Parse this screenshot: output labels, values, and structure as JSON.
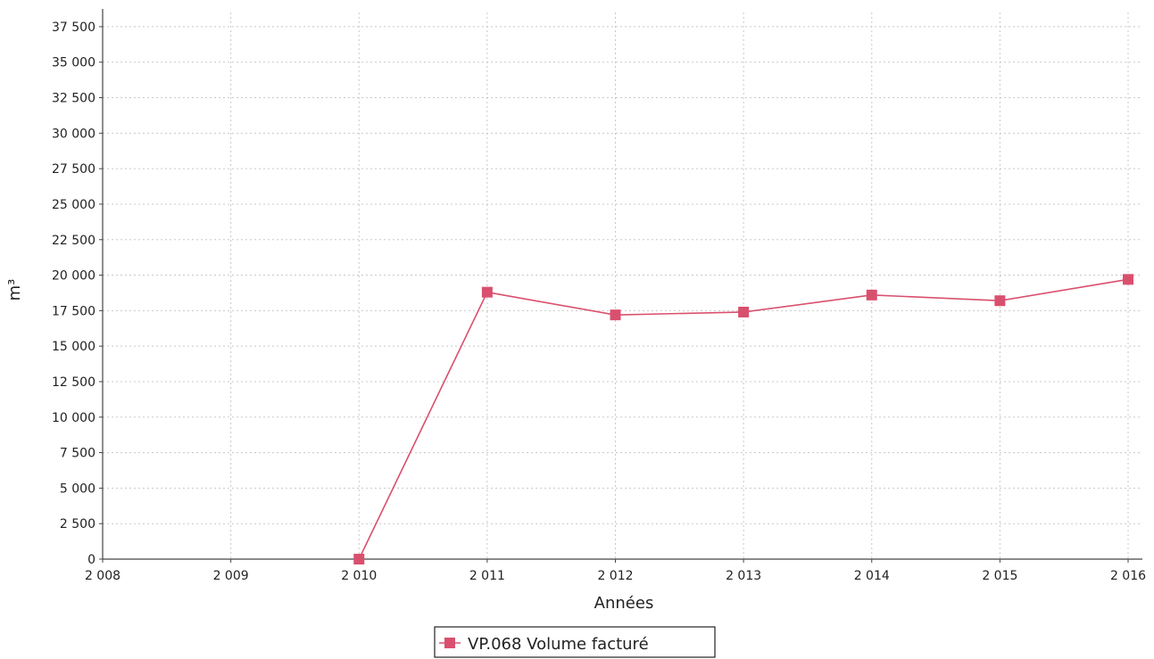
{
  "chart_data": {
    "type": "line",
    "title": "",
    "xlabel": "Années",
    "ylabel": "m³",
    "x": [
      2008,
      2009,
      2010,
      2011,
      2012,
      2013,
      2014,
      2015,
      2016
    ],
    "x_tick_labels": [
      "2 008",
      "2 009",
      "2 010",
      "2 011",
      "2 012",
      "2 013",
      "2 014",
      "2 015",
      "2 016"
    ],
    "xlim": [
      2008,
      2016
    ],
    "ylim": [
      0,
      38500
    ],
    "y_ticks": [
      0,
      2500,
      5000,
      7500,
      10000,
      12500,
      15000,
      17500,
      20000,
      22500,
      25000,
      27500,
      30000,
      32500,
      35000,
      37500
    ],
    "y_tick_labels": [
      "0",
      "2 500",
      "5 000",
      "7 500",
      "10 000",
      "12 500",
      "15 000",
      "17 500",
      "20 000",
      "22 500",
      "25 000",
      "27 500",
      "30 000",
      "32 500",
      "35 000",
      "37 500"
    ],
    "grid": true,
    "legend_position": "bottom-center",
    "series": [
      {
        "name": "VP.068 Volume facturé",
        "color": "#d9506e",
        "marker": "square",
        "x": [
          2010,
          2011,
          2012,
          2013,
          2014,
          2015,
          2016
        ],
        "y": [
          0,
          18800,
          17200,
          17400,
          18600,
          18200,
          19700
        ]
      }
    ]
  }
}
